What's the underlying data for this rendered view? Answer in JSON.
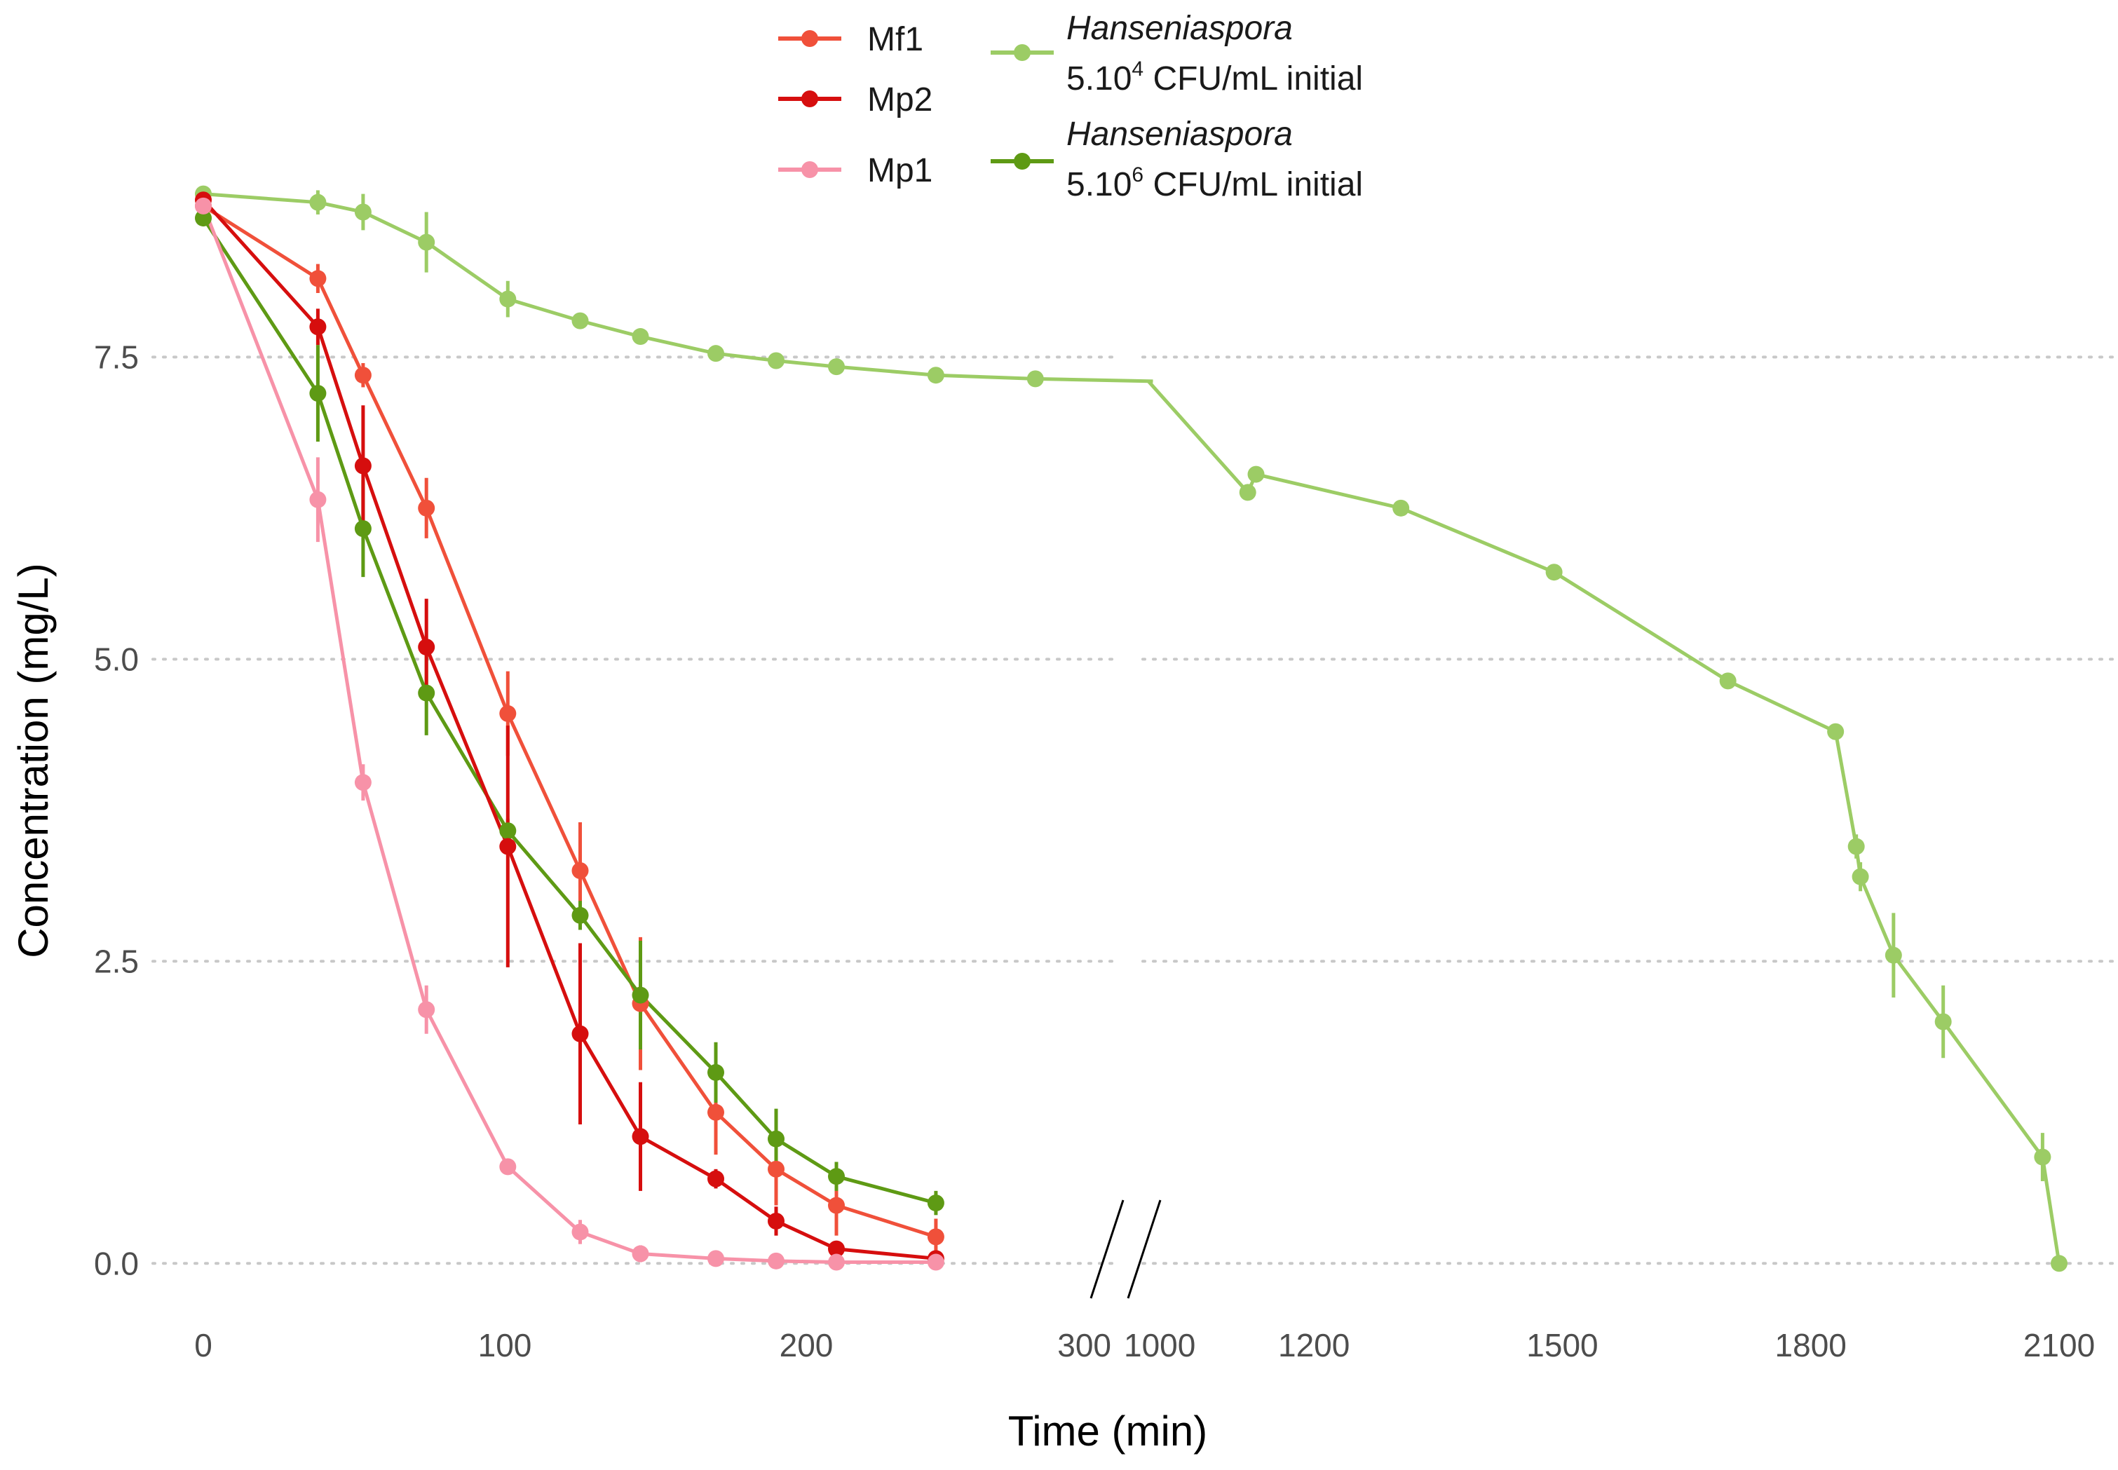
{
  "chart_data": {
    "type": "line",
    "xlabel": "Time (min)",
    "ylabel": "Concentration (mg/L)",
    "ylim": [
      -0.3,
      8.9
    ],
    "y_ticks": [
      0.0,
      2.5,
      5.0,
      7.5
    ],
    "y_tick_labels": [
      "0.0",
      "2.5",
      "5.0",
      "7.5"
    ],
    "grid": "horizontal dotted major gridlines",
    "legend_position": "top",
    "x_axis_break": true,
    "x_segments": [
      {
        "range": [
          0,
          300
        ],
        "ticks": [
          0,
          100,
          200,
          300
        ],
        "tick_labels": [
          "0",
          "100",
          "200",
          "300"
        ]
      },
      {
        "range": [
          1000,
          2100
        ],
        "ticks": [
          1000,
          1200,
          1500,
          1800,
          2100
        ],
        "tick_labels": [
          "1000",
          "1200",
          "1500",
          "1800",
          "2100"
        ]
      }
    ],
    "series": [
      {
        "name": "Mf1",
        "color": "#f0503a",
        "x": [
          0,
          38,
          53,
          74,
          101,
          125,
          145,
          170,
          190,
          210,
          243
        ],
        "y": [
          8.75,
          8.15,
          7.35,
          6.25,
          4.55,
          3.25,
          2.15,
          1.25,
          0.78,
          0.48,
          0.22
        ],
        "err": [
          0.06,
          0.12,
          0.1,
          0.25,
          0.35,
          0.4,
          0.55,
          0.35,
          0.3,
          0.25,
          0.15
        ]
      },
      {
        "name": "Mp2",
        "color": "#d60e0e",
        "x": [
          0,
          38,
          53,
          74,
          101,
          125,
          145,
          170,
          190,
          210,
          243
        ],
        "y": [
          8.8,
          7.75,
          6.6,
          5.1,
          3.45,
          1.9,
          1.05,
          0.7,
          0.35,
          0.12,
          0.04
        ],
        "err": [
          0.04,
          0.15,
          0.5,
          0.4,
          1.0,
          0.75,
          0.45,
          0.08,
          0.12,
          0.06,
          0.03
        ]
      },
      {
        "name": "Mp1",
        "color": "#f792a8",
        "x": [
          0,
          38,
          53,
          74,
          101,
          125,
          145,
          170,
          190,
          210,
          243
        ],
        "y": [
          8.75,
          6.32,
          3.98,
          2.1,
          0.8,
          0.26,
          0.08,
          0.04,
          0.02,
          0.01,
          0.01
        ],
        "err": [
          0.08,
          0.35,
          0.15,
          0.2,
          0.05,
          0.1,
          0.07,
          0.03,
          0.02,
          0.01,
          0.01
        ]
      },
      {
        "name": "Hanseniaspora 5.10^4 CFU/mL initial",
        "color": "#9ccc65",
        "x": [
          0,
          38,
          53,
          74,
          101,
          125,
          145,
          170,
          190,
          210,
          243,
          276,
          315,
          1120,
          1130,
          1305,
          1490,
          1700,
          1830,
          1855,
          1860,
          1900,
          1960,
          2080,
          2100
        ],
        "y": [
          8.85,
          8.78,
          8.7,
          8.45,
          7.98,
          7.8,
          7.67,
          7.53,
          7.47,
          7.42,
          7.35,
          7.32,
          7.3,
          6.38,
          6.53,
          6.25,
          5.72,
          4.82,
          4.4,
          3.45,
          3.2,
          2.55,
          2.0,
          0.88,
          0.0
        ],
        "err": [
          0.02,
          0.1,
          0.15,
          0.25,
          0.15,
          0.04,
          0.04,
          0.04,
          0.03,
          0.03,
          0.03,
          0.03,
          0,
          0,
          0,
          0,
          0,
          0,
          0,
          0.1,
          0.12,
          0.35,
          0.3,
          0.2,
          0.02
        ]
      },
      {
        "name": "Hanseniaspora 5.10^6 CFU/mL initial",
        "color": "#5e9a14",
        "x": [
          0,
          38,
          53,
          74,
          101,
          125,
          145,
          170,
          190,
          210,
          243
        ],
        "y": [
          8.65,
          7.2,
          6.08,
          4.72,
          3.58,
          2.88,
          2.22,
          1.58,
          1.03,
          0.72,
          0.5
        ],
        "err": [
          0.05,
          0.4,
          0.4,
          0.35,
          0.1,
          0.12,
          0.45,
          0.25,
          0.25,
          0.12,
          0.1
        ]
      }
    ]
  },
  "legend": {
    "items": [
      {
        "label": "Mf1",
        "color": "#f0503a"
      },
      {
        "label": "Mp2",
        "color": "#d60e0e"
      },
      {
        "label": "Mp1",
        "color": "#f792a8"
      },
      {
        "label_italic": "Hanseniaspora",
        "label_base": "5.10",
        "label_sup": "4",
        "label_rest": " CFU/mL initial",
        "color": "#9ccc65"
      },
      {
        "label_italic": "Hanseniaspora",
        "label_base": "5.10",
        "label_sup": "6",
        "label_rest": " CFU/mL initial",
        "color": "#5e9a14"
      }
    ]
  }
}
